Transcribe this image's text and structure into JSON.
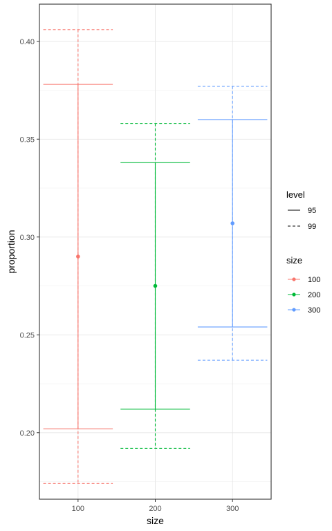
{
  "chart_data": {
    "type": "errorbar",
    "xlabel": "size",
    "ylabel": "proportion",
    "categories": [
      "100",
      "200",
      "300"
    ],
    "points": [
      0.29,
      0.275,
      0.307
    ],
    "intervals": [
      {
        "level": "95",
        "lower": [
          0.202,
          0.212,
          0.254
        ],
        "upper": [
          0.378,
          0.338,
          0.36
        ]
      },
      {
        "level": "99",
        "lower": [
          0.174,
          0.192,
          0.237
        ],
        "upper": [
          0.406,
          0.358,
          0.377
        ]
      }
    ],
    "ylim": [
      0.166,
      0.419
    ],
    "yticks": [
      0.2,
      0.25,
      0.3,
      0.35,
      0.4
    ],
    "ytick_labels": [
      "0.20",
      "0.25",
      "0.30",
      "0.35",
      "0.40"
    ],
    "grid": true,
    "colors": {
      "100": "#F8766D",
      "200": "#00BA38",
      "300": "#619CFF"
    },
    "legend": {
      "position": "right",
      "level": {
        "title": "level",
        "entries": [
          "95",
          "99"
        ]
      },
      "size": {
        "title": "size",
        "entries": [
          "100",
          "200",
          "300"
        ]
      }
    }
  }
}
